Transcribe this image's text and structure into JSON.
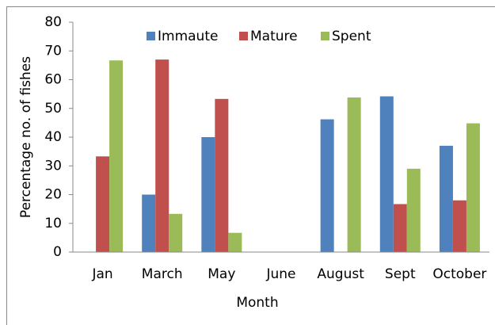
{
  "chart_data": {
    "type": "bar",
    "categories": [
      "Jan",
      "March",
      "May",
      "June",
      "August",
      "Sept",
      "October"
    ],
    "series": [
      {
        "name": "Immaute",
        "color": "#4f81bd",
        "values": [
          0,
          20,
          40,
          0,
          46.2,
          54.2,
          37
        ]
      },
      {
        "name": "Mature",
        "color": "#c0504d",
        "values": [
          33.3,
          67,
          53.3,
          0,
          0,
          16.7,
          18
        ]
      },
      {
        "name": "Spent",
        "color": "#9bbb59",
        "values": [
          66.7,
          13.3,
          6.7,
          0,
          53.8,
          29,
          44.8
        ]
      }
    ],
    "xlabel": "Month",
    "ylabel": "Percentage no. of fishes",
    "ylim": [
      0,
      80
    ],
    "yticks": [
      0,
      10,
      20,
      30,
      40,
      50,
      60,
      70,
      80
    ],
    "grid": false,
    "legend": "top"
  }
}
